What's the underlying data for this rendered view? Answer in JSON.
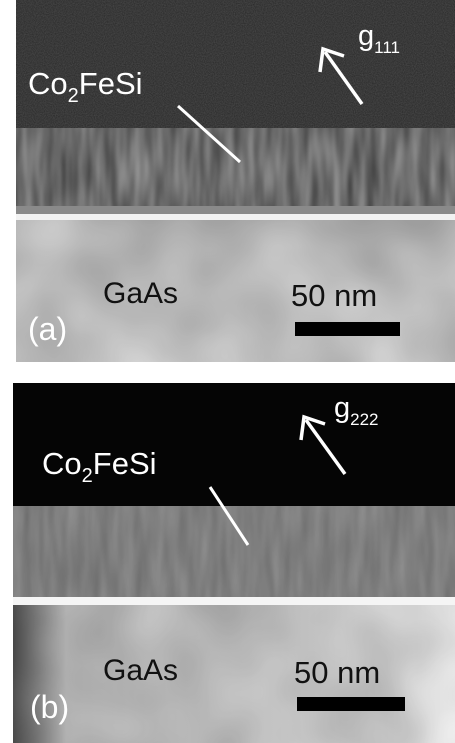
{
  "panels": [
    {
      "label": "(a)",
      "film": {
        "main": "Co",
        "sub": "2",
        "rest": "FeSi"
      },
      "g_vector": {
        "main": "g",
        "sub": "111"
      },
      "substrate": "GaAs",
      "scale_bar": "50 nm"
    },
    {
      "label": "(b)",
      "film": {
        "main": "Co",
        "sub": "2",
        "rest": "FeSi"
      },
      "g_vector": {
        "main": "g",
        "sub": "222"
      },
      "substrate": "GaAs",
      "scale_bar": "50 nm"
    }
  ]
}
